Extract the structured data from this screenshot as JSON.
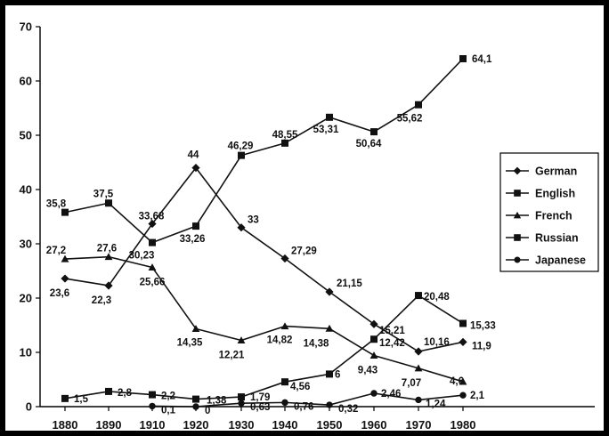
{
  "chart_data": {
    "type": "line",
    "title": "",
    "xlabel": "",
    "ylabel": "",
    "x": [
      "1880",
      "1890",
      "1910",
      "1920",
      "1930",
      "1940",
      "1950",
      "1960",
      "1970",
      "1980"
    ],
    "yticks": [
      "0",
      "10",
      "20",
      "30",
      "40",
      "50",
      "60",
      "70"
    ],
    "ylim": [
      0,
      70
    ],
    "grid": false,
    "legend_position": "right",
    "series": [
      {
        "name": "German",
        "marker": "diamond",
        "values": [
          23.6,
          22.3,
          33.68,
          44,
          33,
          27.29,
          21.15,
          15.21,
          10.16,
          11.9
        ],
        "labels": [
          "23,6",
          "22,3",
          "33,68",
          "44",
          "33",
          "27,29",
          "21,15",
          "15,21",
          "10,16",
          "11,9"
        ]
      },
      {
        "name": "English",
        "marker": "square",
        "values": [
          35.8,
          37.5,
          30.23,
          33.26,
          46.29,
          48.55,
          53.31,
          50.64,
          55.62,
          64.1
        ],
        "labels": [
          "35,8",
          "37,5",
          "30,23",
          "33,26",
          "46,29",
          "48,55",
          "53,31",
          "50,64",
          "55,62",
          "64,1"
        ]
      },
      {
        "name": "French",
        "marker": "triangle",
        "values": [
          27.2,
          27.6,
          25.66,
          14.35,
          12.21,
          14.82,
          14.38,
          9.43,
          7.07,
          4.6
        ],
        "labels": [
          "27,2",
          "27,6",
          "25,66",
          "14,35",
          "12,21",
          "14,82",
          "14,38",
          "9,43",
          "7,07",
          "4,6"
        ]
      },
      {
        "name": "Russian",
        "marker": "square",
        "values": [
          1.5,
          2.8,
          2.2,
          1.38,
          1.79,
          4.56,
          6,
          12.42,
          20.48,
          15.33
        ],
        "labels": [
          "1,5",
          "2,8",
          "2,2",
          "1,38",
          "1,79",
          "4,56",
          "6",
          "12,42",
          "20,48",
          "15,33"
        ]
      },
      {
        "name": "Japanese",
        "marker": "circle",
        "values": [
          null,
          null,
          0.1,
          0,
          0.63,
          0.76,
          0.32,
          2.46,
          1.24,
          2.1
        ],
        "labels": [
          null,
          null,
          "0,1",
          "0",
          "0,63",
          "0,76",
          "0,32",
          "2,46",
          "1,24",
          "2,1"
        ]
      }
    ]
  }
}
